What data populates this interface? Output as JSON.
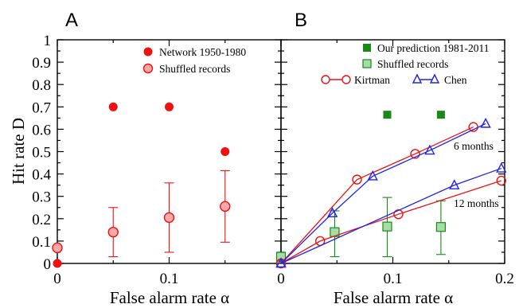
{
  "chart_data": [
    {
      "panel_label": "A",
      "type": "scatter",
      "xlabel": "False alarm rate α",
      "ylabel": "Hit rate D",
      "xlim": [
        0,
        0.2
      ],
      "ylim": [
        0,
        1
      ],
      "x_ticks": [
        "0",
        "0.1"
      ],
      "y_ticks": [
        "0",
        "0.1",
        "0.2",
        "0.3",
        "0.4",
        "0.5",
        "0.6",
        "0.7",
        "0.8",
        "0.9",
        "1"
      ],
      "legend_position": "top-right",
      "series": [
        {
          "name": "Network 1950-1980",
          "marker": "filled-circle",
          "color": "#ee1111",
          "points": [
            {
              "x": 0.0,
              "y": 0.0
            },
            {
              "x": 0.05,
              "y": 0.7
            },
            {
              "x": 0.1,
              "y": 0.7
            },
            {
              "x": 0.15,
              "y": 0.5
            }
          ]
        },
        {
          "name": "Shuffled records",
          "marker": "open-circle-light",
          "color": "#ee1111",
          "points": [
            {
              "x": 0.0,
              "y": 0.07,
              "err_low": 0.07,
              "err_high": 0.07
            },
            {
              "x": 0.05,
              "y": 0.14,
              "err_low": 0.03,
              "err_high": 0.25
            },
            {
              "x": 0.1,
              "y": 0.205,
              "err_low": 0.05,
              "err_high": 0.36
            },
            {
              "x": 0.15,
              "y": 0.255,
              "err_low": 0.095,
              "err_high": 0.415
            }
          ]
        }
      ]
    },
    {
      "panel_label": "B",
      "type": "line",
      "xlabel": "False alarm rate α",
      "xlim": [
        0,
        0.2
      ],
      "ylim": [
        0,
        1
      ],
      "x_ticks": [
        "0",
        "0.1",
        "0.2"
      ],
      "legend_position": "top-right",
      "series": [
        {
          "name": "Our prediction 1981-2011",
          "marker": "filled-square",
          "color": "#178a17",
          "points": [
            {
              "x": 0.095,
              "y": 0.665
            },
            {
              "x": 0.143,
              "y": 0.665
            }
          ]
        },
        {
          "name": "Shuffled records",
          "marker": "open-square-light",
          "color": "#178a17",
          "points": [
            {
              "x": 0.0,
              "y": 0.03,
              "err_low": 0.0,
              "err_high": 0.05
            },
            {
              "x": 0.048,
              "y": 0.14,
              "err_low": 0.03,
              "err_high": 0.235
            },
            {
              "x": 0.095,
              "y": 0.165,
              "err_low": 0.03,
              "err_high": 0.295
            },
            {
              "x": 0.143,
              "y": 0.163,
              "err_low": 0.04,
              "err_high": 0.28
            }
          ]
        },
        {
          "name": "Kirtman",
          "marker": "open-circle",
          "color": "#ee1111",
          "lines": [
            [
              {
                "x": 0.0,
                "y": 0.0
              },
              {
                "x": 0.068,
                "y": 0.375
              },
              {
                "x": 0.12,
                "y": 0.49
              },
              {
                "x": 0.172,
                "y": 0.61
              }
            ],
            [
              {
                "x": 0.0,
                "y": 0.0
              },
              {
                "x": 0.035,
                "y": 0.1
              },
              {
                "x": 0.105,
                "y": 0.22
              },
              {
                "x": 0.197,
                "y": 0.37
              }
            ]
          ]
        },
        {
          "name": "Chen",
          "marker": "open-triangle",
          "color": "#2222ee",
          "lines": [
            [
              {
                "x": 0.0,
                "y": 0.0
              },
              {
                "x": 0.046,
                "y": 0.225
              },
              {
                "x": 0.082,
                "y": 0.39
              },
              {
                "x": 0.133,
                "y": 0.505
              },
              {
                "x": 0.183,
                "y": 0.625
              }
            ],
            [
              {
                "x": 0.0,
                "y": 0.0
              },
              {
                "x": 0.155,
                "y": 0.35
              },
              {
                "x": 0.197,
                "y": 0.425
              }
            ]
          ]
        }
      ],
      "annotations": [
        {
          "text": "6 months",
          "x": 0.155,
          "y": 0.54
        },
        {
          "text": "12 months",
          "x": 0.15,
          "y": 0.265
        }
      ]
    }
  ]
}
